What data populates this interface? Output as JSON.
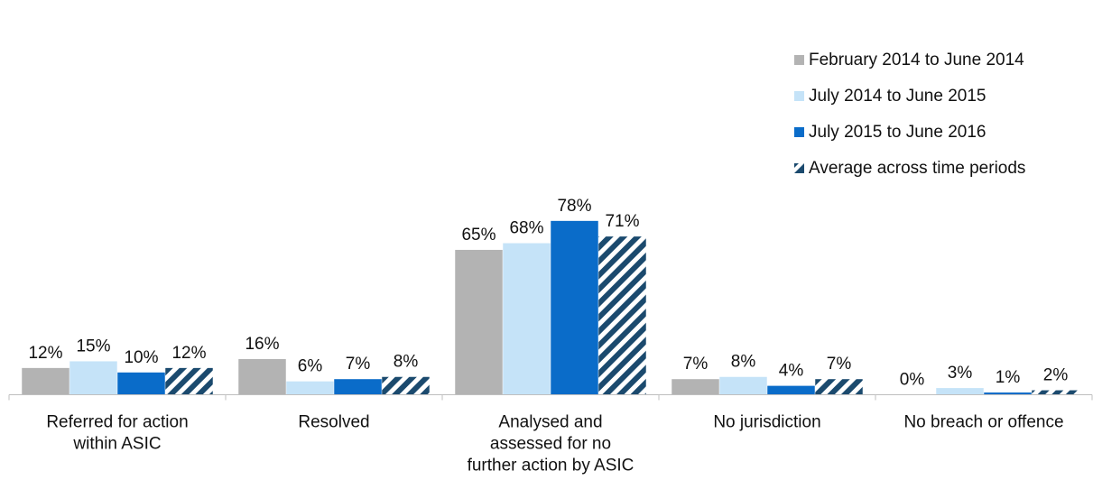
{
  "chart_data": {
    "type": "bar",
    "categories": [
      [
        "Referred for action",
        "within ASIC"
      ],
      [
        "Resolved"
      ],
      [
        "Analysed and",
        "assessed for no",
        "further action by ASIC"
      ],
      [
        "No jurisdiction"
      ],
      [
        "No breach or offence"
      ]
    ],
    "series": [
      {
        "name": "February 2014 to June 2014",
        "values": [
          12,
          16,
          65,
          7,
          0
        ],
        "color": "#b3b3b3",
        "pattern": "solid"
      },
      {
        "name": "July 2014 to June 2015",
        "values": [
          15,
          6,
          68,
          8,
          3
        ],
        "color": "#c5e3f8",
        "pattern": "solid"
      },
      {
        "name": "July 2015 to June 2016",
        "values": [
          10,
          7,
          78,
          4,
          1
        ],
        "color": "#0a6cc9",
        "pattern": "solid"
      },
      {
        "name": "Average across time periods",
        "values": [
          12,
          8,
          71,
          7,
          2
        ],
        "color": "#1b4a6e",
        "pattern": "diagonal-stripes"
      }
    ],
    "value_suffix": "%",
    "ylim": [
      0,
      80
    ],
    "y_axis_visible": false,
    "grid": false,
    "legend_position": "top-right",
    "title": "",
    "xlabel": "",
    "ylabel": ""
  }
}
